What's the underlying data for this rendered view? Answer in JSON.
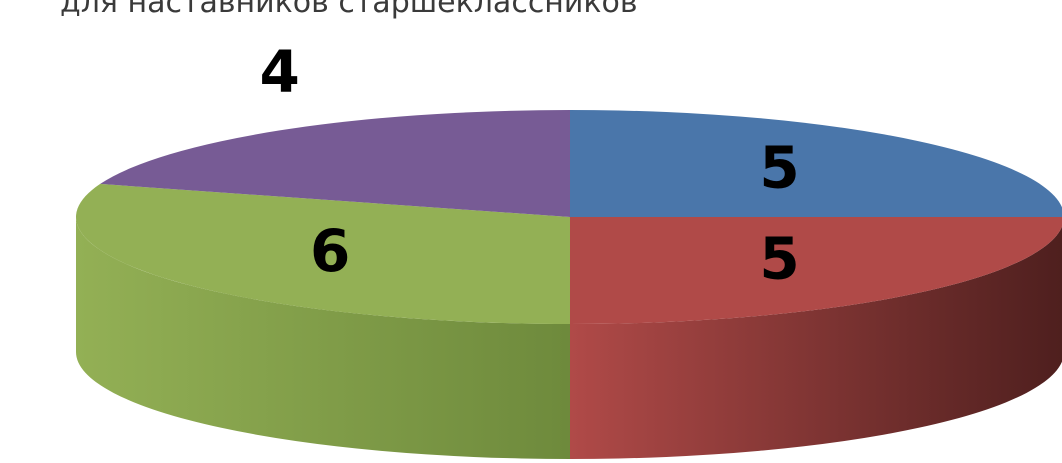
{
  "chart_data": {
    "type": "pie",
    "title": "для наставников старшеклассников",
    "values": [
      5,
      5,
      6,
      4
    ],
    "colors": [
      "#4a76aa",
      "#b04a48",
      "#93b055",
      "#775b95"
    ],
    "side_colors": [
      "#2e4b70",
      "#4e1f1e",
      "#6e8a3c",
      "#4e3a66"
    ]
  }
}
